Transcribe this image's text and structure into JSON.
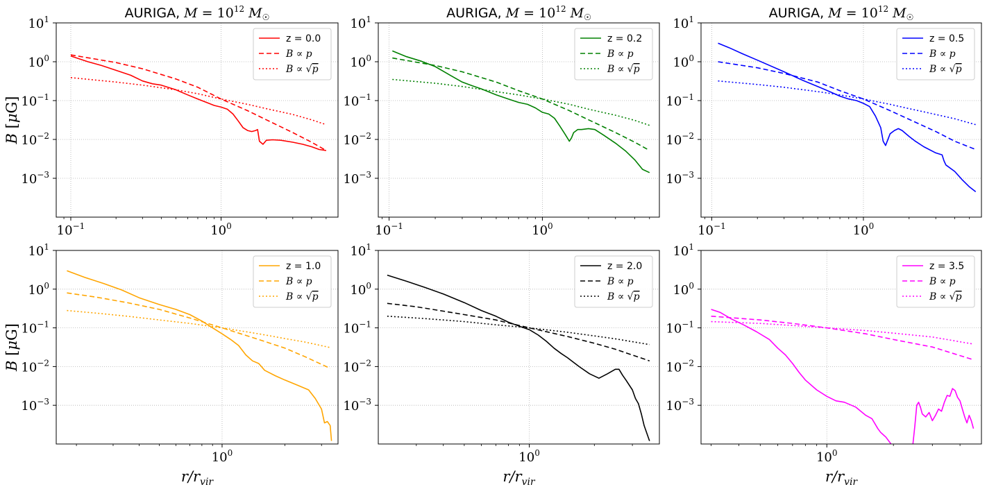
{
  "chart_data": [
    {
      "type": "line",
      "title": "AURIGA, M = 10^12 M☉",
      "ylabel": "B [μG]",
      "xlabel": "",
      "log_x": true,
      "log_y": true,
      "grid": true,
      "legend_position": "top-right",
      "xlim": [
        0.08,
        6.0
      ],
      "ylim": [
        0.0001,
        10
      ],
      "xticks": [
        {
          "value": 0.1,
          "label": "10⁻¹"
        },
        {
          "value": 1,
          "label": "10⁰"
        }
      ],
      "yticks": [
        {
          "value": 10,
          "label": "10¹"
        },
        {
          "value": 1,
          "label": "10⁰"
        },
        {
          "value": 0.1,
          "label": "10⁻¹"
        },
        {
          "value": 0.01,
          "label": "10⁻²"
        },
        {
          "value": 0.001,
          "label": "10⁻³"
        }
      ],
      "color": "#ff0000",
      "series": [
        {
          "name": "z = 0.0",
          "style": "solid",
          "x": [
            0.1,
            0.13,
            0.16,
            0.2,
            0.25,
            0.3,
            0.35,
            0.4,
            0.5,
            0.6,
            0.7,
            0.8,
            0.9,
            1.0,
            1.1,
            1.2,
            1.3,
            1.4,
            1.5,
            1.6,
            1.7,
            1.75,
            1.8,
            1.9,
            2.0,
            2.2,
            2.5,
            3.0,
            3.5,
            4.0,
            4.5,
            5.0
          ],
          "y": [
            1.4,
            1.0,
            0.8,
            0.6,
            0.45,
            0.32,
            0.27,
            0.25,
            0.19,
            0.14,
            0.11,
            0.09,
            0.075,
            0.068,
            0.06,
            0.045,
            0.03,
            0.02,
            0.017,
            0.016,
            0.017,
            0.018,
            0.009,
            0.0075,
            0.0095,
            0.0098,
            0.0095,
            0.0085,
            0.0075,
            0.0065,
            0.0055,
            0.0052
          ]
        },
        {
          "name": "B ∝ p",
          "style": "dashed",
          "x": [
            0.1,
            0.2,
            0.3,
            0.5,
            0.7,
            1.0,
            1.5,
            2.0,
            3.0,
            4.0,
            5.0
          ],
          "y": [
            1.5,
            0.95,
            0.66,
            0.36,
            0.22,
            0.11,
            0.055,
            0.032,
            0.015,
            0.0085,
            0.0052
          ]
        },
        {
          "name": "B ∝ √p",
          "style": "dotted",
          "x": [
            0.1,
            0.2,
            0.3,
            0.5,
            0.7,
            1.0,
            1.5,
            2.0,
            3.0,
            4.0,
            5.0
          ],
          "y": [
            0.39,
            0.3,
            0.25,
            0.19,
            0.15,
            0.11,
            0.08,
            0.062,
            0.044,
            0.032,
            0.024
          ]
        }
      ]
    },
    {
      "type": "line",
      "title": "AURIGA, M = 10^12 M☉",
      "ylabel": "",
      "xlabel": "",
      "log_x": true,
      "log_y": true,
      "grid": true,
      "legend_position": "top-right",
      "xlim": [
        0.085,
        5.8
      ],
      "ylim": [
        0.0001,
        10
      ],
      "xticks": [
        {
          "value": 0.1,
          "label": "10⁻¹"
        },
        {
          "value": 1,
          "label": "10⁰"
        }
      ],
      "yticks": [
        {
          "value": 10,
          "label": "10¹"
        },
        {
          "value": 1,
          "label": "10⁰"
        },
        {
          "value": 0.1,
          "label": "10⁻¹"
        },
        {
          "value": 0.01,
          "label": "10⁻²"
        },
        {
          "value": 0.001,
          "label": "10⁻³"
        }
      ],
      "color": "#008000",
      "series": [
        {
          "name": "z = 0.2",
          "style": "solid",
          "x": [
            0.105,
            0.13,
            0.16,
            0.2,
            0.25,
            0.3,
            0.35,
            0.4,
            0.5,
            0.6,
            0.7,
            0.8,
            0.9,
            1.0,
            1.1,
            1.2,
            1.3,
            1.4,
            1.5,
            1.55,
            1.6,
            1.7,
            1.8,
            2.0,
            2.2,
            2.5,
            3.0,
            3.5,
            4.0,
            4.5,
            5.0
          ],
          "y": [
            1.9,
            1.35,
            1.05,
            0.75,
            0.45,
            0.3,
            0.24,
            0.2,
            0.14,
            0.11,
            0.09,
            0.08,
            0.065,
            0.05,
            0.045,
            0.035,
            0.022,
            0.014,
            0.009,
            0.011,
            0.015,
            0.018,
            0.018,
            0.019,
            0.018,
            0.013,
            0.008,
            0.005,
            0.003,
            0.0017,
            0.0014
          ]
        },
        {
          "name": "B ∝ p",
          "style": "dashed",
          "x": [
            0.105,
            0.2,
            0.3,
            0.5,
            0.7,
            1.0,
            1.5,
            2.0,
            3.0,
            4.0,
            5.0
          ],
          "y": [
            1.25,
            0.8,
            0.55,
            0.3,
            0.18,
            0.11,
            0.055,
            0.032,
            0.015,
            0.0085,
            0.0052
          ]
        },
        {
          "name": "B ∝ √p",
          "style": "dotted",
          "x": [
            0.105,
            0.2,
            0.3,
            0.5,
            0.7,
            1.0,
            1.5,
            2.0,
            3.0,
            4.0,
            5.0
          ],
          "y": [
            0.35,
            0.28,
            0.23,
            0.17,
            0.14,
            0.11,
            0.08,
            0.06,
            0.042,
            0.031,
            0.023
          ]
        }
      ]
    },
    {
      "type": "line",
      "title": "AURIGA, M = 10^12 M☉",
      "ylabel": "",
      "xlabel": "",
      "log_x": true,
      "log_y": true,
      "grid": true,
      "legend_position": "top-right",
      "xlim": [
        0.085,
        6.0
      ],
      "ylim": [
        0.0001,
        10
      ],
      "xticks": [
        {
          "value": 0.1,
          "label": "10⁻¹"
        },
        {
          "value": 1,
          "label": "10⁰"
        }
      ],
      "yticks": [
        {
          "value": 10,
          "label": "10¹"
        },
        {
          "value": 1,
          "label": "10⁰"
        },
        {
          "value": 0.1,
          "label": "10⁻¹"
        },
        {
          "value": 0.01,
          "label": "10⁻²"
        },
        {
          "value": 0.001,
          "label": "10⁻³"
        }
      ],
      "color": "#0000ff",
      "series": [
        {
          "name": "z = 0.5",
          "style": "solid",
          "x": [
            0.11,
            0.13,
            0.16,
            0.2,
            0.3,
            0.4,
            0.5,
            0.6,
            0.7,
            0.8,
            0.9,
            1.0,
            1.1,
            1.2,
            1.3,
            1.35,
            1.4,
            1.5,
            1.6,
            1.7,
            1.8,
            2.0,
            2.2,
            2.5,
            3.0,
            3.3,
            3.4,
            3.5,
            4.0,
            4.5,
            5.0,
            5.5
          ],
          "y": [
            3.0,
            2.3,
            1.6,
            1.1,
            0.55,
            0.33,
            0.23,
            0.17,
            0.13,
            0.11,
            0.1,
            0.085,
            0.07,
            0.04,
            0.02,
            0.009,
            0.007,
            0.014,
            0.017,
            0.019,
            0.017,
            0.012,
            0.009,
            0.0065,
            0.0045,
            0.004,
            0.0028,
            0.0022,
            0.0015,
            0.0009,
            0.0006,
            0.00045
          ]
        },
        {
          "name": "B ∝ p",
          "style": "dashed",
          "x": [
            0.11,
            0.2,
            0.3,
            0.5,
            0.7,
            1.0,
            1.5,
            2.0,
            3.0,
            4.0,
            5.5
          ],
          "y": [
            1.0,
            0.7,
            0.5,
            0.3,
            0.18,
            0.11,
            0.055,
            0.033,
            0.016,
            0.009,
            0.0055
          ]
        },
        {
          "name": "B ∝ √p",
          "style": "dotted",
          "x": [
            0.11,
            0.2,
            0.3,
            0.5,
            0.7,
            1.0,
            1.5,
            2.0,
            3.0,
            4.0,
            5.5
          ],
          "y": [
            0.32,
            0.26,
            0.22,
            0.17,
            0.14,
            0.11,
            0.08,
            0.062,
            0.044,
            0.034,
            0.024
          ]
        }
      ]
    },
    {
      "type": "line",
      "title": "",
      "ylabel": "B [μG]",
      "xlabel": "r/r_vir",
      "log_x": true,
      "log_y": true,
      "grid": true,
      "legend_position": "top-right",
      "xlim": [
        0.16,
        3.6
      ],
      "ylim": [
        0.0001,
        10
      ],
      "xticks": [
        {
          "value": 1,
          "label": "10⁰"
        }
      ],
      "yticks": [
        {
          "value": 10,
          "label": "10¹"
        },
        {
          "value": 1,
          "label": "10⁰"
        },
        {
          "value": 0.1,
          "label": "10⁻¹"
        },
        {
          "value": 0.01,
          "label": "10⁻²"
        },
        {
          "value": 0.001,
          "label": "10⁻³"
        }
      ],
      "color": "#ffa500",
      "series": [
        {
          "name": "z = 1.0",
          "style": "solid",
          "x": [
            0.18,
            0.22,
            0.27,
            0.33,
            0.4,
            0.5,
            0.6,
            0.7,
            0.8,
            0.9,
            1.0,
            1.1,
            1.2,
            1.3,
            1.4,
            1.5,
            1.6,
            1.8,
            2.0,
            2.3,
            2.6,
            2.8,
            3.0,
            3.1,
            3.2,
            3.3,
            3.35
          ],
          "y": [
            3.0,
            2.0,
            1.4,
            0.95,
            0.6,
            0.4,
            0.3,
            0.22,
            0.15,
            0.1,
            0.07,
            0.05,
            0.035,
            0.02,
            0.014,
            0.012,
            0.008,
            0.0058,
            0.0045,
            0.0033,
            0.0025,
            0.0015,
            0.0008,
            0.00035,
            0.00038,
            0.0003,
            0.00012
          ]
        },
        {
          "name": "B ∝ p",
          "style": "dashed",
          "x": [
            0.18,
            0.25,
            0.35,
            0.5,
            0.7,
            1.0,
            1.5,
            2.0,
            2.5,
            3.3
          ],
          "y": [
            0.8,
            0.62,
            0.45,
            0.3,
            0.18,
            0.1,
            0.05,
            0.03,
            0.018,
            0.009
          ]
        },
        {
          "name": "B ∝ √p",
          "style": "dotted",
          "x": [
            0.18,
            0.25,
            0.35,
            0.5,
            0.7,
            1.0,
            1.5,
            2.0,
            2.5,
            3.3
          ],
          "y": [
            0.28,
            0.24,
            0.2,
            0.16,
            0.13,
            0.1,
            0.07,
            0.053,
            0.043,
            0.031
          ]
        }
      ]
    },
    {
      "type": "line",
      "title": "",
      "ylabel": "",
      "xlabel": "r/r_vir",
      "log_x": true,
      "log_y": true,
      "grid": true,
      "legend_position": "top-right",
      "xlim": [
        0.2,
        4.0
      ],
      "ylim": [
        0.0001,
        10
      ],
      "xticks": [
        {
          "value": 1,
          "label": "10⁰"
        }
      ],
      "yticks": [
        {
          "value": 10,
          "label": "10¹"
        },
        {
          "value": 1,
          "label": "10⁰"
        },
        {
          "value": 0.1,
          "label": "10⁻¹"
        },
        {
          "value": 0.01,
          "label": "10⁻²"
        },
        {
          "value": 0.001,
          "label": "10⁻³"
        }
      ],
      "color": "#000000",
      "series": [
        {
          "name": "z = 2.0",
          "style": "solid",
          "x": [
            0.22,
            0.27,
            0.33,
            0.4,
            0.5,
            0.6,
            0.7,
            0.8,
            0.9,
            1.0,
            1.1,
            1.2,
            1.3,
            1.4,
            1.5,
            1.7,
            1.9,
            2.1,
            2.3,
            2.5,
            2.6,
            2.7,
            2.8,
            3.0,
            3.1,
            3.2,
            3.3,
            3.4,
            3.6
          ],
          "y": [
            2.3,
            1.6,
            1.1,
            0.75,
            0.45,
            0.28,
            0.2,
            0.14,
            0.11,
            0.09,
            0.065,
            0.045,
            0.03,
            0.022,
            0.017,
            0.01,
            0.0065,
            0.005,
            0.0065,
            0.0085,
            0.0085,
            0.006,
            0.0045,
            0.0025,
            0.0015,
            0.0011,
            0.0006,
            0.0003,
            0.00012
          ]
        },
        {
          "name": "B ∝ p",
          "style": "dashed",
          "x": [
            0.22,
            0.3,
            0.4,
            0.5,
            0.7,
            1.0,
            1.5,
            2.0,
            2.5,
            3.6
          ],
          "y": [
            0.43,
            0.35,
            0.27,
            0.22,
            0.16,
            0.1,
            0.06,
            0.04,
            0.028,
            0.014
          ]
        },
        {
          "name": "B ∝ √p",
          "style": "dotted",
          "x": [
            0.22,
            0.3,
            0.4,
            0.5,
            0.7,
            1.0,
            1.5,
            2.0,
            2.5,
            3.6
          ],
          "y": [
            0.2,
            0.18,
            0.16,
            0.145,
            0.12,
            0.1,
            0.077,
            0.062,
            0.052,
            0.037
          ]
        }
      ]
    },
    {
      "type": "line",
      "title": "",
      "ylabel": "",
      "xlabel": "r/r_vir",
      "log_x": true,
      "log_y": true,
      "grid": true,
      "legend_position": "top-right",
      "xlim": [
        0.27,
        5.0
      ],
      "ylim": [
        0.0001,
        10
      ],
      "xticks": [
        {
          "value": 1,
          "label": "10⁰"
        }
      ],
      "yticks": [
        {
          "value": 10,
          "label": "10¹"
        },
        {
          "value": 1,
          "label": "10⁰"
        },
        {
          "value": 0.1,
          "label": "10⁻¹"
        },
        {
          "value": 0.01,
          "label": "10⁻²"
        },
        {
          "value": 0.001,
          "label": "10⁻³"
        }
      ],
      "color": "#ff00ff",
      "series": [
        {
          "name": "z = 3.5",
          "style": "solid",
          "segments": [
            {
              "x": [
                0.3,
                0.33,
                0.37,
                0.42,
                0.48,
                0.55,
                0.6,
                0.65,
                0.7,
                0.75,
                0.8,
                0.9,
                1.0,
                1.1,
                1.2,
                1.35,
                1.5,
                1.6,
                1.7,
                1.75,
                1.85,
                1.95
              ],
              "y": [
                0.3,
                0.25,
                0.17,
                0.12,
                0.08,
                0.05,
                0.03,
                0.02,
                0.012,
                0.007,
                0.0045,
                0.0025,
                0.0017,
                0.0013,
                0.0012,
                0.0009,
                0.00055,
                0.00045,
                0.00025,
                0.0002,
                0.00015,
                0.0001
              ]
            },
            {
              "x": [
                2.45,
                2.5,
                2.55,
                2.6,
                2.65,
                2.7,
                2.8,
                2.9,
                3.0,
                3.1,
                3.2,
                3.3,
                3.4,
                3.5,
                3.6,
                3.7,
                3.8,
                3.9,
                4.0,
                4.1,
                4.2,
                4.3,
                4.4,
                4.5,
                4.6
              ],
              "y": [
                0.0001,
                0.0003,
                0.001,
                0.0012,
                0.0009,
                0.0006,
                0.0005,
                0.00065,
                0.0004,
                0.00055,
                0.0008,
                0.0007,
                0.0012,
                0.0018,
                0.0017,
                0.0027,
                0.0024,
                0.0016,
                0.0013,
                0.0008,
                0.0005,
                0.00035,
                0.00055,
                0.0004,
                0.00025
              ]
            }
          ]
        },
        {
          "name": "B ∝ p",
          "style": "dashed",
          "x": [
            0.3,
            0.5,
            0.7,
            1.0,
            1.5,
            2.0,
            3.0,
            4.6
          ],
          "y": [
            0.2,
            0.16,
            0.13,
            0.1,
            0.07,
            0.05,
            0.032,
            0.015
          ]
        },
        {
          "name": "B ∝ √p",
          "style": "dotted",
          "x": [
            0.3,
            0.5,
            0.7,
            1.0,
            1.5,
            2.0,
            3.0,
            4.6
          ],
          "y": [
            0.145,
            0.13,
            0.115,
            0.1,
            0.085,
            0.073,
            0.058,
            0.038
          ]
        }
      ]
    }
  ]
}
